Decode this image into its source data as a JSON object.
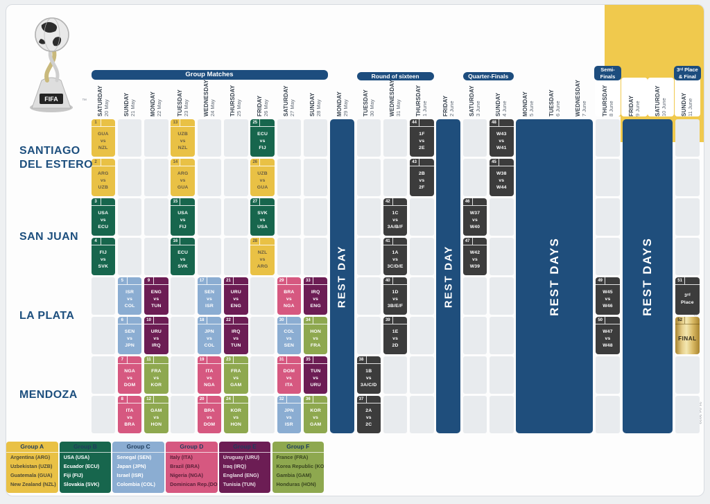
{
  "sections": [
    {
      "kind": "bar",
      "label": "Group Matches",
      "c": 0,
      "span": 9
    },
    {
      "kind": "bar",
      "label": "Round of sixteen",
      "c": 10,
      "span": 3
    },
    {
      "kind": "bar",
      "label": "Quarter-Finals",
      "c": 14,
      "span": 2
    },
    {
      "kind": "chip",
      "lines": [
        "Semi-",
        "Finals"
      ],
      "c": 19,
      "span": 1
    },
    {
      "kind": "chip",
      "lines": [
        "3ʳᵈ Place",
        "& Final"
      ],
      "c": 22,
      "span": 1
    }
  ],
  "days": [
    {
      "day": "SATURDAY",
      "date": "20 May"
    },
    {
      "day": "SUNDAY",
      "date": "21 May"
    },
    {
      "day": "MONDAY",
      "date": "22 May"
    },
    {
      "day": "TUESDAY",
      "date": "23 May"
    },
    {
      "day": "WEDNESDAY",
      "date": "24 May"
    },
    {
      "day": "THURSDAY",
      "date": "25 May"
    },
    {
      "day": "FRIDAY",
      "date": "26 May"
    },
    {
      "day": "SATURDAY",
      "date": "27 May"
    },
    {
      "day": "SUNDAY",
      "date": "28 May"
    },
    {
      "day": "MONDAY",
      "date": "29 May"
    },
    {
      "day": "TUESDAY",
      "date": "30 May"
    },
    {
      "day": "WEDNESDAY",
      "date": "31 May"
    },
    {
      "day": "THURSDAY",
      "date": "1 June"
    },
    {
      "day": "FRIDAY",
      "date": "2 June"
    },
    {
      "day": "SATURDAY",
      "date": "3 June"
    },
    {
      "day": "SUNDAY",
      "date": "4 June"
    },
    {
      "day": "MONDAY",
      "date": "5 June"
    },
    {
      "day": "TUESDAY",
      "date": "6 June"
    },
    {
      "day": "WEDNESDAY",
      "date": "7 June"
    },
    {
      "day": "THURSDAY",
      "date": "8 June"
    },
    {
      "day": "FRIDAY",
      "date": "9 June"
    },
    {
      "day": "SATURDAY",
      "date": "10 June"
    },
    {
      "day": "SUNDAY",
      "date": "11 June"
    }
  ],
  "venues": [
    {
      "name": "SANTIAGO DEL ESTERO",
      "lines": [
        "SANTIAGO",
        "DEL ESTERO"
      ],
      "rows": [
        0,
        1
      ]
    },
    {
      "name": "SAN JUAN",
      "lines": [
        "SAN JUAN"
      ],
      "rows": [
        2,
        3
      ]
    },
    {
      "name": "LA PLATA",
      "lines": [
        "LA PLATA"
      ],
      "rows": [
        4,
        5
      ]
    },
    {
      "name": "MENDOZA",
      "lines": [
        "MENDOZA"
      ],
      "rows": [
        6,
        7
      ]
    }
  ],
  "rest_bars": [
    {
      "label": "REST DAY",
      "c": 9,
      "span": 1
    },
    {
      "label": "REST DAY",
      "c": 13,
      "span": 1
    },
    {
      "label": "REST DAYS",
      "c": 16,
      "span": 3
    },
    {
      "label": "REST DAYS",
      "c": 20,
      "span": 2
    }
  ],
  "matches": [
    {
      "n": 1,
      "r": 0,
      "c": 0,
      "g": "A",
      "t": "GUA",
      "b": "NZL"
    },
    {
      "n": 2,
      "r": 1,
      "c": 0,
      "g": "A",
      "t": "ARG",
      "b": "UZB"
    },
    {
      "n": 3,
      "r": 2,
      "c": 0,
      "g": "B",
      "t": "USA",
      "b": "ECU"
    },
    {
      "n": 4,
      "r": 3,
      "c": 0,
      "g": "B",
      "t": "FIJ",
      "b": "SVK"
    },
    {
      "n": 5,
      "r": 4,
      "c": 1,
      "g": "C",
      "t": "ISR",
      "b": "COL"
    },
    {
      "n": 6,
      "r": 5,
      "c": 1,
      "g": "C",
      "t": "SEN",
      "b": "JPN"
    },
    {
      "n": 7,
      "r": 6,
      "c": 1,
      "g": "D",
      "t": "NGA",
      "b": "DOM"
    },
    {
      "n": 8,
      "r": 7,
      "c": 1,
      "g": "D",
      "t": "ITA",
      "b": "BRA"
    },
    {
      "n": 9,
      "r": 4,
      "c": 2,
      "g": "E",
      "t": "ENG",
      "b": "TUN"
    },
    {
      "n": 10,
      "r": 5,
      "c": 2,
      "g": "E",
      "t": "URU",
      "b": "IRQ"
    },
    {
      "n": 11,
      "r": 6,
      "c": 2,
      "g": "F",
      "t": "FRA",
      "b": "KOR"
    },
    {
      "n": 12,
      "r": 7,
      "c": 2,
      "g": "F",
      "t": "GAM",
      "b": "HON"
    },
    {
      "n": 13,
      "r": 0,
      "c": 3,
      "g": "A",
      "t": "UZB",
      "b": "NZL"
    },
    {
      "n": 14,
      "r": 1,
      "c": 3,
      "g": "A",
      "t": "ARG",
      "b": "GUA"
    },
    {
      "n": 15,
      "r": 2,
      "c": 3,
      "g": "B",
      "t": "USA",
      "b": "FIJ"
    },
    {
      "n": 16,
      "r": 3,
      "c": 3,
      "g": "B",
      "t": "ECU",
      "b": "SVK"
    },
    {
      "n": 17,
      "r": 4,
      "c": 4,
      "g": "C",
      "t": "SEN",
      "b": "ISR"
    },
    {
      "n": 18,
      "r": 5,
      "c": 4,
      "g": "C",
      "t": "JPN",
      "b": "COL"
    },
    {
      "n": 19,
      "r": 6,
      "c": 4,
      "g": "D",
      "t": "ITA",
      "b": "NGA"
    },
    {
      "n": 20,
      "r": 7,
      "c": 4,
      "g": "D",
      "t": "BRA",
      "b": "DOM"
    },
    {
      "n": 21,
      "r": 4,
      "c": 5,
      "g": "E",
      "t": "URU",
      "b": "ENG"
    },
    {
      "n": 22,
      "r": 5,
      "c": 5,
      "g": "E",
      "t": "IRQ",
      "b": "TUN"
    },
    {
      "n": 23,
      "r": 6,
      "c": 5,
      "g": "F",
      "t": "FRA",
      "b": "GAM"
    },
    {
      "n": 24,
      "r": 7,
      "c": 5,
      "g": "F",
      "t": "KOR",
      "b": "HON"
    },
    {
      "n": 25,
      "r": 0,
      "c": 6,
      "g": "B",
      "t": "ECU",
      "b": "FIJ"
    },
    {
      "n": 26,
      "r": 1,
      "c": 6,
      "g": "A",
      "t": "UZB",
      "b": "GUA"
    },
    {
      "n": 27,
      "r": 2,
      "c": 6,
      "g": "B",
      "t": "SVK",
      "b": "USA"
    },
    {
      "n": 28,
      "r": 3,
      "c": 6,
      "g": "A",
      "t": "NZL",
      "b": "ARG"
    },
    {
      "n": 29,
      "r": 4,
      "c": 7,
      "g": "D",
      "t": "BRA",
      "b": "NGA"
    },
    {
      "n": 30,
      "r": 5,
      "c": 7,
      "g": "C",
      "t": "COL",
      "b": "SEN"
    },
    {
      "n": 31,
      "r": 6,
      "c": 7,
      "g": "D",
      "t": "DOM",
      "b": "ITA"
    },
    {
      "n": 32,
      "r": 7,
      "c": 7,
      "g": "C",
      "t": "JPN",
      "b": "ISR"
    },
    {
      "n": 33,
      "r": 4,
      "c": 8,
      "g": "E",
      "t": "IRQ",
      "b": "ENG"
    },
    {
      "n": 34,
      "r": 5,
      "c": 8,
      "g": "F",
      "t": "HON",
      "b": "FRA"
    },
    {
      "n": 35,
      "r": 6,
      "c": 8,
      "g": "E",
      "t": "TUN",
      "b": "URU"
    },
    {
      "n": 36,
      "r": 7,
      "c": 8,
      "g": "F",
      "t": "KOR",
      "b": "GAM"
    },
    {
      "n": 37,
      "r": 7,
      "c": 10,
      "g": "K",
      "t": "2A",
      "b": "2C"
    },
    {
      "n": 38,
      "r": 6,
      "c": 10,
      "g": "K",
      "t": "1B",
      "b": "3A/C/D"
    },
    {
      "n": 39,
      "r": 5,
      "c": 11,
      "g": "K",
      "t": "1E",
      "b": "2D"
    },
    {
      "n": 40,
      "r": 4,
      "c": 11,
      "g": "K",
      "t": "1D",
      "b": "3B/E/F"
    },
    {
      "n": 41,
      "r": 3,
      "c": 11,
      "g": "K",
      "t": "1A",
      "b": "3C/D/E"
    },
    {
      "n": 42,
      "r": 2,
      "c": 11,
      "g": "K",
      "t": "1C",
      "b": "3A/B/F"
    },
    {
      "n": 43,
      "r": 1,
      "c": 12,
      "g": "K",
      "t": "2B",
      "b": "2F"
    },
    {
      "n": 44,
      "r": 0,
      "c": 12,
      "g": "K",
      "t": "1F",
      "b": "2E"
    },
    {
      "n": 45,
      "r": 1,
      "c": 15,
      "g": "K",
      "t": "W38",
      "b": "W44"
    },
    {
      "n": 46,
      "r": 2,
      "c": 14,
      "g": "K",
      "t": "W37",
      "b": "W40"
    },
    {
      "n": 47,
      "r": 3,
      "c": 14,
      "g": "K",
      "t": "W42",
      "b": "W39"
    },
    {
      "n": 48,
      "r": 0,
      "c": 15,
      "g": "K",
      "t": "W43",
      "b": "W41"
    },
    {
      "n": 49,
      "r": 4,
      "c": 19,
      "g": "K",
      "t": "W45",
      "b": "W46"
    },
    {
      "n": 50,
      "r": 5,
      "c": 19,
      "g": "K",
      "t": "W47",
      "b": "W48"
    },
    {
      "n": 51,
      "r": 4,
      "c": 22,
      "g": "K",
      "lines": [
        "3ʳᵈ",
        "Place"
      ]
    },
    {
      "n": 52,
      "r": 5,
      "c": 22,
      "g": "G",
      "lines": [
        "FINAL"
      ]
    }
  ],
  "vs_label": "vs",
  "group_styles": {
    "A": {
      "bg": "#e9c145",
      "fg": "#675b41"
    },
    "B": {
      "bg": "#17664d",
      "fg": "#ffffff"
    },
    "C": {
      "bg": "#8badd2",
      "fg": "#ffffff"
    },
    "D": {
      "bg": "#d65880",
      "fg": "#ffffff"
    },
    "E": {
      "bg": "#6c1d54",
      "fg": "#ffffff"
    },
    "F": {
      "bg": "#8ea84f",
      "fg": "#ffffff"
    },
    "K": {
      "bg": "#3c3c3c",
      "fg": "#ffffff"
    },
    "G": {
      "bg": "gold",
      "fg": "#2a2415"
    }
  },
  "legend": [
    {
      "name": "Group A",
      "bg": "#e9c145",
      "fg": "#4e4a33",
      "teams": [
        "Argentina (ARG)",
        "Uzbekistan (UZB)",
        "Guatemala (GUA)",
        "New Zealand (NZL)"
      ]
    },
    {
      "name": "Group B",
      "bg": "#17664d",
      "fg": "#ffffff",
      "teams": [
        "USA (USA)",
        "Ecuador (ECU)",
        "Fiji (FIJ)",
        "Slovakia (SVK)"
      ]
    },
    {
      "name": "Group C",
      "bg": "#8badd2",
      "fg": "#ffffff",
      "teams": [
        "Senegal (SEN)",
        "Japan (JPN)",
        "Israel (ISR)",
        "Colombia (COL)"
      ]
    },
    {
      "name": "Group D",
      "bg": "#d65880",
      "fg": "#5a2038",
      "teams": [
        "Italy (ITA)",
        "Brazil (BRA)",
        "Nigeria (NGA)",
        "Dominican Rep.(DOM)"
      ]
    },
    {
      "name": "Group E",
      "bg": "#6c1d54",
      "fg": "#e8d9e3",
      "teams": [
        "Uruguay (URU)",
        "Iraq (IRQ)",
        "England (ENG)",
        "Tunisia (TUN)"
      ]
    },
    {
      "name": "Group F",
      "bg": "#8ea84f",
      "fg": "#39461f",
      "teams": [
        "France (FRA)",
        "Korea Republic (KOR)",
        "Gambia (GAM)",
        "Honduras (HON)"
      ]
    }
  ],
  "logo": {
    "plaque": "FIFA",
    "trademark": "™"
  },
  "footer": {
    "copyright": "© FIFA",
    "datestamp": "21.04.2023"
  },
  "accents": {
    "yellow_block": "#f0c94d",
    "navy": "#1d4d7e",
    "rest_navy": "#1f4e7c",
    "empty_cell": "#e8ebee"
  }
}
